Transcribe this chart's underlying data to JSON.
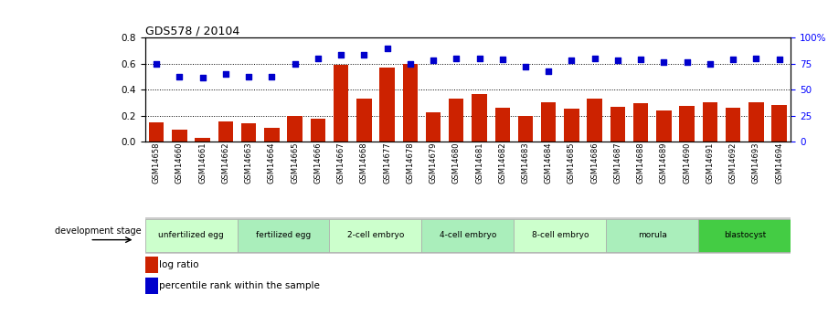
{
  "title": "GDS578 / 20104",
  "samples": [
    "GSM14658",
    "GSM14660",
    "GSM14661",
    "GSM14662",
    "GSM14663",
    "GSM14664",
    "GSM14665",
    "GSM14666",
    "GSM14667",
    "GSM14668",
    "GSM14677",
    "GSM14678",
    "GSM14679",
    "GSM14680",
    "GSM14681",
    "GSM14682",
    "GSM14683",
    "GSM14684",
    "GSM14685",
    "GSM14686",
    "GSM14687",
    "GSM14688",
    "GSM14689",
    "GSM14690",
    "GSM14691",
    "GSM14692",
    "GSM14693",
    "GSM14694"
  ],
  "log_ratio": [
    0.148,
    0.095,
    0.03,
    0.155,
    0.145,
    0.105,
    0.2,
    0.175,
    0.595,
    0.33,
    0.57,
    0.6,
    0.23,
    0.33,
    0.37,
    0.26,
    0.2,
    0.305,
    0.255,
    0.33,
    0.27,
    0.3,
    0.24,
    0.275,
    0.305,
    0.26,
    0.305,
    0.28
  ],
  "percentile_rank": [
    75,
    63,
    62,
    65,
    63,
    63,
    75,
    80,
    84,
    84,
    90,
    75,
    78,
    80,
    80,
    79,
    72,
    68,
    78,
    80,
    78,
    79,
    77,
    77,
    75,
    79,
    80,
    79
  ],
  "stages": [
    {
      "label": "unfertilized egg",
      "start": 0,
      "end": 4,
      "color": "#ccffcc"
    },
    {
      "label": "fertilized egg",
      "start": 4,
      "end": 8,
      "color": "#aaeebb"
    },
    {
      "label": "2-cell embryo",
      "start": 8,
      "end": 12,
      "color": "#ccffcc"
    },
    {
      "label": "4-cell embryo",
      "start": 12,
      "end": 16,
      "color": "#aaeebb"
    },
    {
      "label": "8-cell embryo",
      "start": 16,
      "end": 20,
      "color": "#ccffcc"
    },
    {
      "label": "morula",
      "start": 20,
      "end": 24,
      "color": "#aaeebb"
    },
    {
      "label": "blastocyst",
      "start": 24,
      "end": 28,
      "color": "#44cc44"
    }
  ],
  "bar_color": "#cc2200",
  "dot_color": "#0000cc",
  "ylim_left": [
    0,
    0.8
  ],
  "ylim_right": [
    0,
    100
  ],
  "yticks_left": [
    0.0,
    0.2,
    0.4,
    0.6,
    0.8
  ],
  "yticks_right": [
    0,
    25,
    50,
    75,
    100
  ],
  "ylabel_right_ticks": [
    "0",
    "25",
    "50",
    "75",
    "100%"
  ],
  "dev_stage_label": "development stage",
  "legend_bar": "log ratio",
  "legend_dot": "percentile rank within the sample",
  "background_color": "#ffffff",
  "grid_color": "#000000",
  "stage_bg_color": "#cccccc"
}
